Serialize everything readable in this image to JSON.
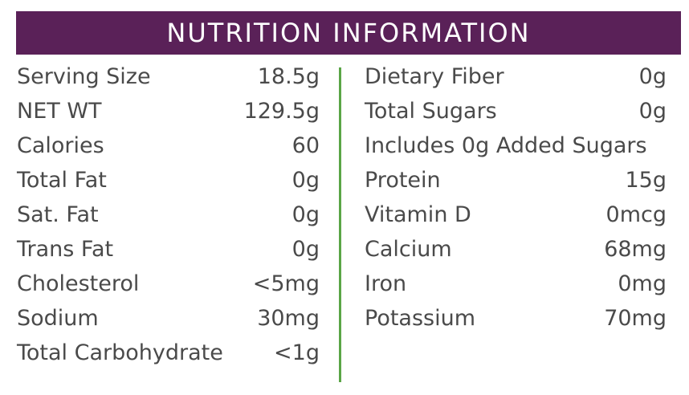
{
  "header": {
    "title": "NUTRITION INFORMATION"
  },
  "colors": {
    "header_bg": "#5a2158",
    "divider": "#5aa546",
    "text": "#4a4a4a"
  },
  "left": [
    {
      "label": "Serving Size",
      "value": "18.5g"
    },
    {
      "label": "NET WT",
      "value": "129.5g"
    },
    {
      "label": "Calories",
      "value": "60"
    },
    {
      "label": "Total Fat",
      "value": "0g"
    },
    {
      "label": "Sat. Fat",
      "value": "0g"
    },
    {
      "label": "Trans Fat",
      "value": "0g"
    },
    {
      "label": "Cholesterol",
      "value": "<5mg"
    },
    {
      "label": "Sodium",
      "value": "30mg"
    },
    {
      "label": "Total Carbohydrate",
      "value": "<1g"
    }
  ],
  "right": [
    {
      "label": "Dietary Fiber",
      "value": "0g"
    },
    {
      "label": "Total Sugars",
      "value": "0g"
    },
    {
      "label": "Includes 0g Added Sugars",
      "value": ""
    },
    {
      "label": "Protein",
      "value": "15g"
    },
    {
      "label": "Vitamin D",
      "value": "0mcg"
    },
    {
      "label": "Calcium",
      "value": "68mg"
    },
    {
      "label": "Iron",
      "value": "0mg"
    },
    {
      "label": "Potassium",
      "value": "70mg"
    }
  ]
}
